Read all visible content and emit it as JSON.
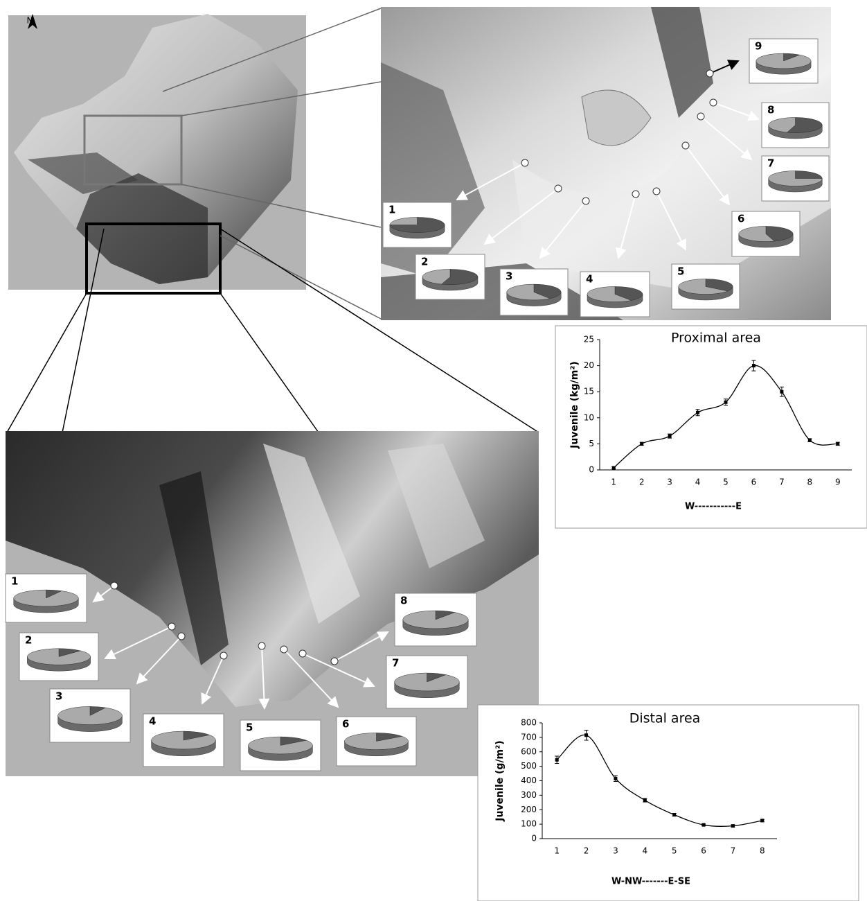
{
  "map": {
    "north": "N"
  },
  "chart_data": [
    {
      "type": "line",
      "title": "Proximal area",
      "ylabel": "Juvenile (kg/m²)",
      "xlabel": "W-----------E",
      "categories": [
        "1",
        "2",
        "3",
        "4",
        "5",
        "6",
        "7",
        "8",
        "9"
      ],
      "values": [
        0.4,
        5,
        6.5,
        11,
        13,
        20,
        15,
        5.7,
        5
      ],
      "errors": [
        0.2,
        0.3,
        0.4,
        0.6,
        0.6,
        1,
        0.9,
        0.3,
        0.3
      ],
      "color": "#000000",
      "ylim": [
        0,
        25
      ],
      "yticks": [
        0,
        5,
        10,
        15,
        20,
        25
      ]
    },
    {
      "type": "line",
      "title": "Distal area",
      "ylabel": "Juvenile (g/m²)",
      "xlabel": "W-NW-------E-SE",
      "categories": [
        "1",
        "2",
        "3",
        "4",
        "5",
        "6",
        "7",
        "8"
      ],
      "values": [
        545,
        715,
        415,
        265,
        165,
        95,
        88,
        125
      ],
      "errors": [
        25,
        35,
        20,
        12,
        10,
        6,
        8,
        8
      ],
      "color": "#000000",
      "ylim": [
        0,
        800
      ],
      "yticks": [
        0,
        100,
        200,
        300,
        400,
        500,
        600,
        700,
        800
      ]
    },
    {
      "type": "pie",
      "label": "1",
      "values": [
        75,
        25
      ],
      "colors": [
        "#555555",
        "#aaaaaa"
      ]
    },
    {
      "type": "pie",
      "label": "2",
      "values": [
        55,
        45
      ],
      "colors": [
        "#555555",
        "#aaaaaa"
      ]
    },
    {
      "type": "pie",
      "label": "3",
      "values": [
        40,
        60
      ],
      "colors": [
        "#555555",
        "#aaaaaa"
      ]
    },
    {
      "type": "pie",
      "label": "4",
      "values": [
        40,
        60
      ],
      "colors": [
        "#555555",
        "#aaaaaa"
      ]
    },
    {
      "type": "pie",
      "label": "5",
      "values": [
        35,
        65
      ],
      "colors": [
        "#555555",
        "#aaaaaa"
      ]
    },
    {
      "type": "pie",
      "label": "6",
      "values": [
        45,
        55
      ],
      "colors": [
        "#555555",
        "#aaaaaa"
      ]
    },
    {
      "type": "pie",
      "label": "7",
      "values": [
        25,
        75
      ],
      "colors": [
        "#555555",
        "#aaaaaa"
      ]
    },
    {
      "type": "pie",
      "label": "8",
      "values": [
        55,
        45
      ],
      "colors": [
        "#555555",
        "#aaaaaa"
      ]
    },
    {
      "type": "pie",
      "label": "9",
      "values": [
        10,
        90
      ],
      "colors": [
        "#555555",
        "#aaaaaa"
      ]
    },
    {
      "type": "pie",
      "label": "1",
      "values": [
        8,
        92
      ],
      "colors": [
        "#555555",
        "#aaaaaa"
      ]
    },
    {
      "type": "pie",
      "label": "2",
      "values": [
        12,
        88
      ],
      "colors": [
        "#555555",
        "#aaaaaa"
      ]
    },
    {
      "type": "pie",
      "label": "3",
      "values": [
        8,
        92
      ],
      "colors": [
        "#555555",
        "#aaaaaa"
      ]
    },
    {
      "type": "pie",
      "label": "4",
      "values": [
        15,
        85
      ],
      "colors": [
        "#555555",
        "#aaaaaa"
      ]
    },
    {
      "type": "pie",
      "label": "5",
      "values": [
        15,
        85
      ],
      "colors": [
        "#555555",
        "#aaaaaa"
      ]
    },
    {
      "type": "pie",
      "label": "6",
      "values": [
        15,
        85
      ],
      "colors": [
        "#555555",
        "#aaaaaa"
      ]
    },
    {
      "type": "pie",
      "label": "7",
      "values": [
        10,
        90
      ],
      "colors": [
        "#555555",
        "#aaaaaa"
      ]
    },
    {
      "type": "pie",
      "label": "8",
      "values": [
        10,
        90
      ],
      "colors": [
        "#555555",
        "#aaaaaa"
      ]
    }
  ]
}
